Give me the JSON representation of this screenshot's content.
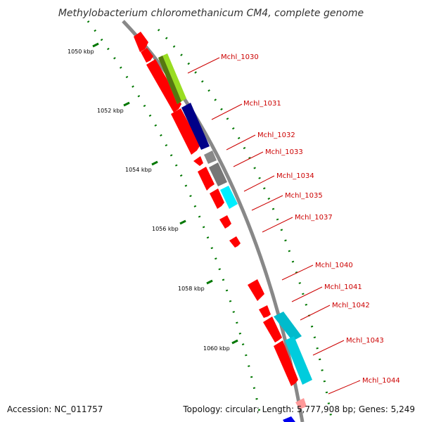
{
  "title": "Methylobacterium chloromethanicum CM4, complete genome",
  "footer": {
    "accession": "Accession: NC_011757",
    "summary": "Topology: circular; Length: 5,777,908 bp; Genes: 5,249"
  },
  "colors": {
    "backbone": "#888888",
    "ruler": "#007700",
    "gene_default": "#ff0000",
    "label": "#cc0000",
    "yellowgreen": "#99dd22",
    "navy": "#000088",
    "gray": "#777777",
    "cyan": "#00ccdd"
  },
  "ticks": [
    {
      "label": "1050 kbp"
    },
    {
      "label": "1052 kbp"
    },
    {
      "label": "1054 kbp"
    },
    {
      "label": "1056 kbp"
    },
    {
      "label": "1058 kbp"
    },
    {
      "label": "1060 kbp"
    }
  ],
  "labels": [
    {
      "text": "Mchl_1030"
    },
    {
      "text": "Mchl_1031"
    },
    {
      "text": "Mchl_1032"
    },
    {
      "text": "Mchl_1033"
    },
    {
      "text": "Mchl_1034"
    },
    {
      "text": "Mchl_1035"
    },
    {
      "text": "Mchl_1037"
    },
    {
      "text": "Mchl_1040"
    },
    {
      "text": "Mchl_1041"
    },
    {
      "text": "Mchl_1042"
    },
    {
      "text": "Mchl_1043"
    },
    {
      "text": "Mchl_1044"
    }
  ]
}
